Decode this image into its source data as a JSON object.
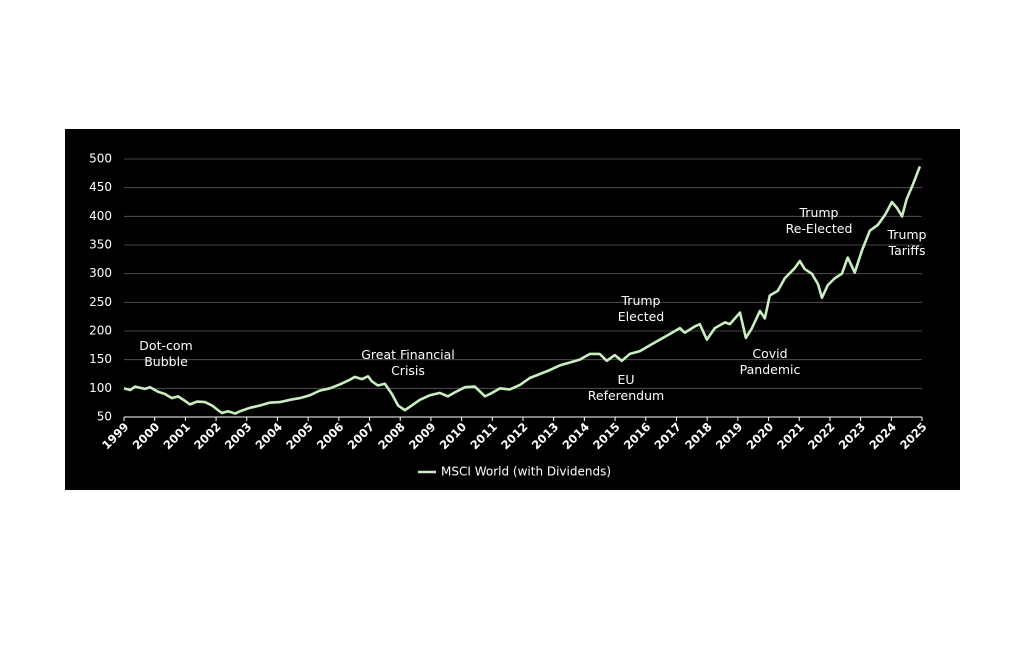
{
  "chart_data": {
    "type": "line",
    "x": [
      1999.0,
      1999.2,
      1999.36,
      1999.68,
      1999.85,
      2000.11,
      2000.34,
      2000.56,
      2000.76,
      2000.99,
      2001.15,
      2001.38,
      2001.64,
      2001.87,
      2002.06,
      2002.19,
      2002.39,
      2002.62,
      2002.78,
      2003.1,
      2003.43,
      2003.75,
      2004.08,
      2004.41,
      2004.73,
      2005.06,
      2005.38,
      2005.71,
      2006.04,
      2006.36,
      2006.52,
      2006.75,
      2006.95,
      2007.08,
      2007.27,
      2007.5,
      2007.73,
      2007.93,
      2008.15,
      2008.32,
      2008.64,
      2008.97,
      2009.29,
      2009.55,
      2009.78,
      2010.11,
      2010.43,
      2010.76,
      2010.99,
      2011.25,
      2011.57,
      2011.9,
      2012.22,
      2012.55,
      2012.88,
      2013.2,
      2013.53,
      2013.85,
      2014.18,
      2014.5,
      2014.73,
      2014.99,
      2015.22,
      2015.48,
      2015.81,
      2016.13,
      2016.46,
      2016.79,
      2017.11,
      2017.27,
      2017.6,
      2017.76,
      2017.99,
      2018.25,
      2018.58,
      2018.74,
      2019.07,
      2019.26,
      2019.46,
      2019.72,
      2019.88,
      2020.04,
      2020.3,
      2020.53,
      2020.86,
      2021.02,
      2021.18,
      2021.41,
      2021.61,
      2021.74,
      2021.93,
      2022.16,
      2022.39,
      2022.58,
      2022.81,
      2023.04,
      2023.3,
      2023.56,
      2023.79,
      2024.02,
      2024.18,
      2024.35,
      2024.5,
      2024.7,
      2024.93
    ],
    "series": [
      {
        "name": "MSCI World (with Dividends)",
        "color": "#c8efc0",
        "values": [
          100,
          97,
          103,
          99,
          102,
          94,
          90,
          83,
          86,
          78,
          72,
          77,
          76,
          70,
          62,
          57,
          60,
          56,
          60,
          66,
          70,
          75,
          76,
          80,
          83,
          88,
          96,
          100,
          107,
          115,
          120,
          116,
          121,
          112,
          105,
          108,
          90,
          70,
          62,
          68,
          80,
          88,
          92,
          86,
          93,
          102,
          103,
          86,
          92,
          100,
          98,
          106,
          118,
          125,
          132,
          140,
          145,
          150,
          160,
          160,
          148,
          158,
          148,
          160,
          165,
          175,
          185,
          195,
          205,
          197,
          208,
          212,
          185,
          205,
          215,
          212,
          232,
          188,
          205,
          235,
          222,
          262,
          270,
          292,
          310,
          322,
          308,
          300,
          282,
          258,
          280,
          292,
          300,
          328,
          302,
          340,
          375,
          385,
          402,
          425,
          415,
          400,
          430,
          455,
          487
        ]
      }
    ],
    "xlim": [
      1999,
      2025
    ],
    "xticks": [
      1999,
      2000,
      2001,
      2002,
      2003,
      2004,
      2005,
      2006,
      2007,
      2008,
      2009,
      2010,
      2011,
      2012,
      2013,
      2014,
      2015,
      2016,
      2017,
      2018,
      2019,
      2020,
      2021,
      2022,
      2023,
      2024,
      2025
    ],
    "ylim": [
      50,
      500
    ],
    "yticks": [
      50,
      100,
      150,
      200,
      250,
      300,
      350,
      400,
      450,
      500
    ],
    "grid": true,
    "legend": "bottom",
    "annotations": [
      {
        "lines": [
          "Dot-com",
          "Bubble"
        ]
      },
      {
        "lines": [
          "Great Financial",
          "Crisis"
        ]
      },
      {
        "lines": [
          "Trump",
          "Elected"
        ]
      },
      {
        "lines": [
          "EU",
          "Referendum"
        ]
      },
      {
        "lines": [
          "Covid",
          "Pandemic"
        ]
      },
      {
        "lines": [
          "Trump",
          "Re-Elected"
        ]
      },
      {
        "lines": [
          "Trump",
          "Tariffs"
        ]
      }
    ]
  }
}
